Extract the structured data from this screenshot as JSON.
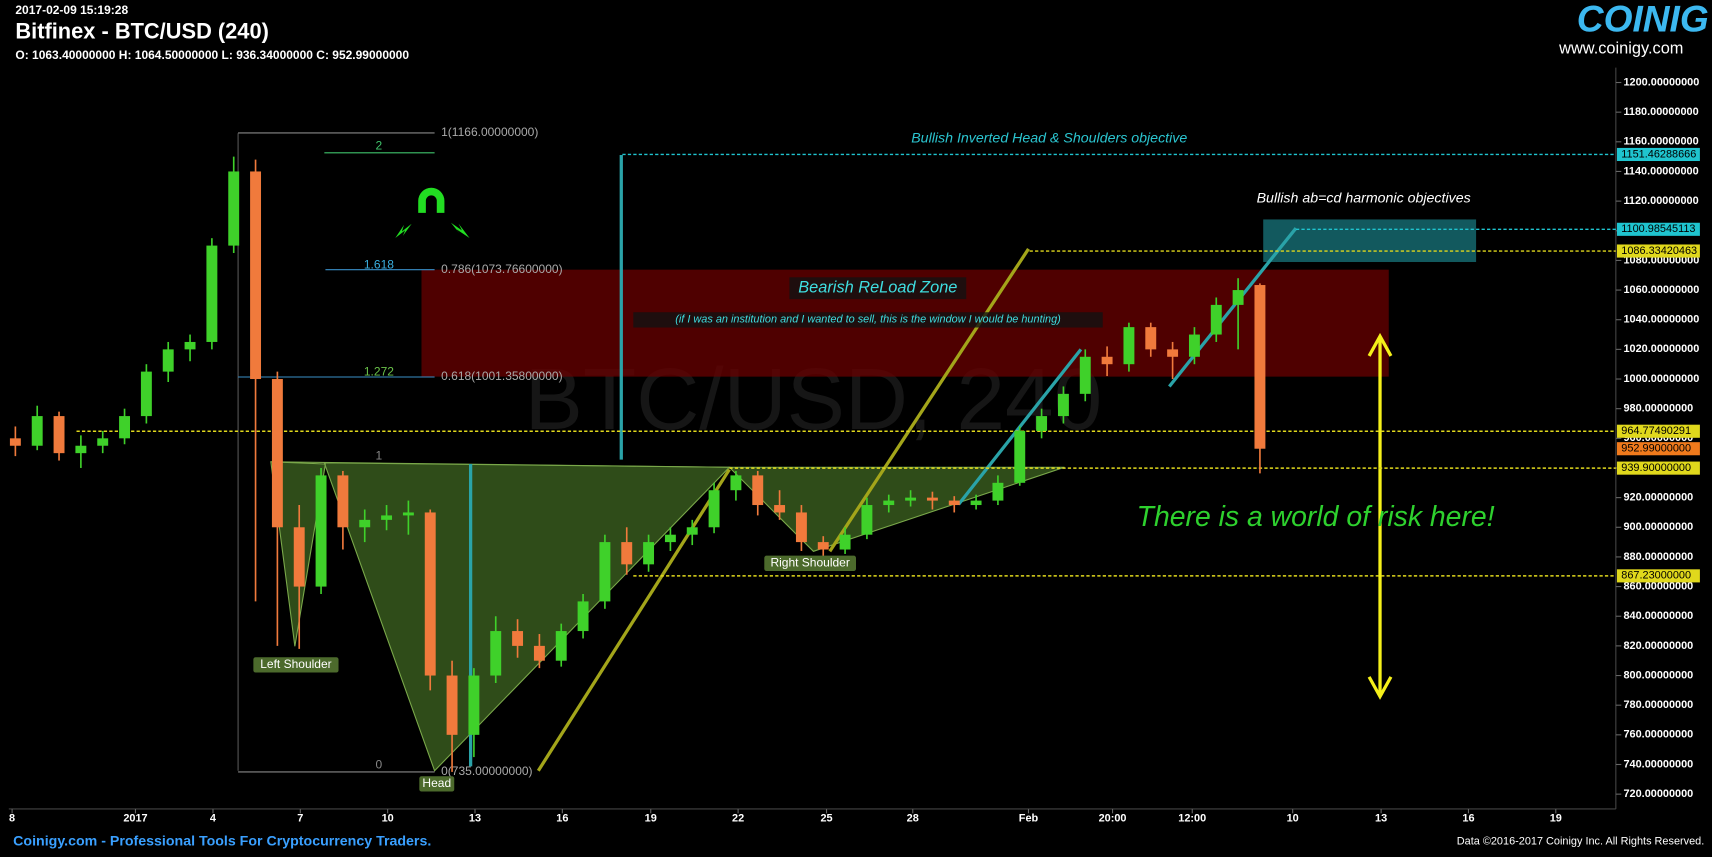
{
  "chart_data": {
    "type": "candlestick",
    "timestamp": "2017-02-09 15:19:28",
    "title": "Bitfinex - BTC/USD (240)",
    "ohlc_summary": "O: 1063.40000000 H: 1064.50000000 L: 936.34000000 C: 952.99000000",
    "watermark": "BTC/USD, 240",
    "brand": "COINIGY",
    "brand_url": "www.coinigy.com",
    "footer_left": "Coinigy.com - Professional Tools For Cryptocurrency Traders.",
    "footer_right": "Data ©2016-2017 Coinigy Inc. All Rights Reserved.",
    "up_color": "#3fd12a",
    "down_color": "#f07a3c",
    "x": [
      0,
      1,
      2,
      3,
      4,
      5,
      6,
      7,
      8,
      9,
      10,
      11,
      12,
      13,
      14,
      15,
      16,
      17,
      18,
      19,
      20,
      21,
      22,
      23,
      24,
      25,
      26,
      27,
      28,
      29,
      30,
      31,
      32,
      33,
      34,
      35,
      36,
      37,
      38,
      39,
      40,
      41,
      42,
      43,
      44,
      45,
      46,
      47,
      48,
      49,
      50,
      51,
      52,
      53,
      54,
      55,
      56,
      57
    ],
    "ohlc": [
      [
        960,
        968,
        948,
        955
      ],
      [
        955,
        982,
        952,
        975
      ],
      [
        975,
        978,
        945,
        950
      ],
      [
        950,
        962,
        940,
        955
      ],
      [
        955,
        965,
        950,
        960
      ],
      [
        960,
        980,
        956,
        975
      ],
      [
        975,
        1010,
        970,
        1005
      ],
      [
        1005,
        1025,
        998,
        1020
      ],
      [
        1020,
        1030,
        1012,
        1025
      ],
      [
        1025,
        1095,
        1020,
        1090
      ],
      [
        1090,
        1150,
        1085,
        1140
      ],
      [
        1140,
        1148,
        850,
        1000
      ],
      [
        1000,
        1005,
        820,
        900
      ],
      [
        900,
        915,
        818,
        860
      ],
      [
        860,
        940,
        855,
        935
      ],
      [
        935,
        938,
        885,
        900
      ],
      [
        900,
        912,
        890,
        905
      ],
      [
        905,
        915,
        898,
        908
      ],
      [
        908,
        918,
        895,
        910
      ],
      [
        910,
        912,
        790,
        800
      ],
      [
        800,
        810,
        735,
        760
      ],
      [
        760,
        805,
        745,
        800
      ],
      [
        800,
        840,
        795,
        830
      ],
      [
        830,
        838,
        812,
        820
      ],
      [
        820,
        828,
        805,
        810
      ],
      [
        810,
        835,
        806,
        830
      ],
      [
        830,
        855,
        825,
        850
      ],
      [
        850,
        895,
        845,
        890
      ],
      [
        890,
        900,
        868,
        875
      ],
      [
        875,
        895,
        870,
        890
      ],
      [
        890,
        900,
        884,
        895
      ],
      [
        895,
        905,
        888,
        900
      ],
      [
        900,
        930,
        896,
        925
      ],
      [
        925,
        938,
        918,
        935
      ],
      [
        935,
        938,
        908,
        915
      ],
      [
        915,
        925,
        905,
        910
      ],
      [
        910,
        915,
        884,
        890
      ],
      [
        890,
        894,
        880,
        885
      ],
      [
        885,
        900,
        882,
        895
      ],
      [
        895,
        920,
        892,
        915
      ],
      [
        915,
        922,
        910,
        918
      ],
      [
        918,
        925,
        914,
        920
      ],
      [
        920,
        924,
        912,
        918
      ],
      [
        918,
        921,
        910,
        915
      ],
      [
        915,
        922,
        912,
        918
      ],
      [
        918,
        935,
        915,
        930
      ],
      [
        930,
        968,
        928,
        965
      ],
      [
        965,
        980,
        960,
        975
      ],
      [
        975,
        995,
        970,
        990
      ],
      [
        990,
        1020,
        985,
        1015
      ],
      [
        1015,
        1022,
        1002,
        1010
      ],
      [
        1010,
        1038,
        1005,
        1035
      ],
      [
        1035,
        1038,
        1015,
        1020
      ],
      [
        1020,
        1025,
        1000,
        1015
      ],
      [
        1015,
        1035,
        1010,
        1030
      ],
      [
        1030,
        1055,
        1025,
        1050
      ],
      [
        1050,
        1068,
        1020,
        1060
      ],
      [
        1063.4,
        1064.5,
        936.34,
        952.99
      ]
    ],
    "xlim": [
      -0.3,
      73.3
    ],
    "xticks": [
      {
        "value": -0.15,
        "label": "8"
      },
      {
        "value": 5.5,
        "label": "2017"
      },
      {
        "value": 9.05,
        "label": "4"
      },
      {
        "value": 13.05,
        "label": "7"
      },
      {
        "value": 17.05,
        "label": "10"
      },
      {
        "value": 21.05,
        "label": "13"
      },
      {
        "value": 25.05,
        "label": "16"
      },
      {
        "value": 29.1,
        "label": "19"
      },
      {
        "value": 33.1,
        "label": "22"
      },
      {
        "value": 37.15,
        "label": "25"
      },
      {
        "value": 41.1,
        "label": "28"
      },
      {
        "value": 46.4,
        "label": "Feb"
      },
      {
        "value": 50.25,
        "label": "20:00"
      },
      {
        "value": 53.9,
        "label": "12:00"
      },
      {
        "value": 58.5,
        "label": "10"
      },
      {
        "value": 62.55,
        "label": "13"
      },
      {
        "value": 66.55,
        "label": "16"
      },
      {
        "value": 70.55,
        "label": "19"
      }
    ],
    "ylim": [
      710,
      1210
    ],
    "yticks": [
      {
        "value": 720,
        "label": "720.00000000"
      },
      {
        "value": 740,
        "label": "740.00000000"
      },
      {
        "value": 760,
        "label": "760.00000000"
      },
      {
        "value": 780,
        "label": "780.00000000"
      },
      {
        "value": 800,
        "label": "800.00000000"
      },
      {
        "value": 820,
        "label": "820.00000000"
      },
      {
        "value": 840,
        "label": "840.00000000"
      },
      {
        "value": 860,
        "label": "860.00000000"
      },
      {
        "value": 880,
        "label": "880.00000000"
      },
      {
        "value": 900,
        "label": "900.00000000"
      },
      {
        "value": 920,
        "label": "920.00000000"
      },
      {
        "value": 940,
        "label": "940.00000000"
      },
      {
        "value": 960,
        "label": "960.00000000"
      },
      {
        "value": 980,
        "label": "980.00000000"
      },
      {
        "value": 1000,
        "label": "1000.00000000"
      },
      {
        "value": 1020,
        "label": "1020.00000000"
      },
      {
        "value": 1040,
        "label": "1040.00000000"
      },
      {
        "value": 1060,
        "label": "1060.00000000"
      },
      {
        "value": 1080,
        "label": "1080.00000000"
      },
      {
        "value": 1100,
        "label": "1100.00000000"
      },
      {
        "value": 1120,
        "label": "1120.00000000"
      },
      {
        "value": 1140,
        "label": "1140.00000000"
      },
      {
        "value": 1160,
        "label": "1160.00000000"
      },
      {
        "value": 1180,
        "label": "1180.00000000"
      },
      {
        "value": 1200,
        "label": "1200.00000000"
      }
    ],
    "price_levels": [
      {
        "value": 1151.46288666,
        "label": "1151.46288666",
        "color": "#1fc4cf"
      },
      {
        "value": 1100.98545113,
        "label": "1100.98545113",
        "color": "#1fc4cf"
      },
      {
        "value": 1086.33420463,
        "label": "1086.33420463",
        "color": "#e0d81c"
      },
      {
        "value": 964.77490291,
        "label": "964.77490291",
        "color": "#e0d81c"
      },
      {
        "value": 952.99,
        "label": "952.99000000",
        "color": "#f07a1c"
      },
      {
        "value": 939.9,
        "label": "939.90000000",
        "color": "#e0d81c"
      },
      {
        "value": 867.23,
        "label": "867.23000000",
        "color": "#e0d81c"
      }
    ],
    "fib_levels": [
      {
        "value": 1166,
        "label": "1(1166.00000000)"
      },
      {
        "value": 1073.766,
        "label": "0.786(1073.76600000)"
      },
      {
        "value": 1001.358,
        "label": "0.618(1001.35800000)"
      },
      {
        "value": 735,
        "label": "0(735.00000000)"
      }
    ],
    "fib_extension_labels": [
      "2",
      "1.618",
      "1.272",
      "1",
      "0"
    ],
    "annotations": [
      "Bullish Inverted Head & Shoulders objective",
      "Bullish ab=cd harmonic objectives",
      "Bearish ReLoad Zone",
      "(if I was an institution and I wanted to sell, this is the window I would be hunting)",
      "There is a world of risk here!"
    ],
    "pattern_labels": [
      "Left Shoulder",
      "Head",
      "Right Shoulder"
    ]
  }
}
